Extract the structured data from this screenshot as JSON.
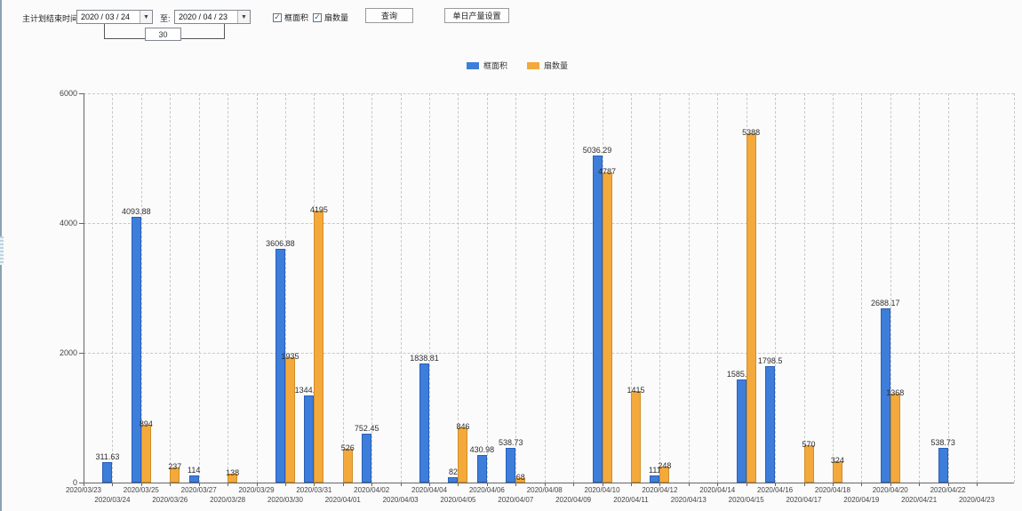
{
  "controls": {
    "plan_end_label": "主计划结束时间:",
    "date_from": "2020 / 03 / 24",
    "to_label": "至:",
    "date_to": "2020 / 04 / 23",
    "days_value": "30",
    "query_button": "查询",
    "daily_output_button": "单日产量设置",
    "dropdown_glyph": "▼"
  },
  "checkboxes": [
    {
      "label": "框面积",
      "checked": true
    },
    {
      "label": "扇数量",
      "checked": true
    }
  ],
  "colors": {
    "frame_area_blue": "#3D7EDB",
    "frame_area_border": "#2A5FB8",
    "fan_count_orange": "#F3A93C",
    "fan_count_border": "#D18F26"
  },
  "legend": [
    {
      "label": "框面积",
      "color": "#3D7EDB"
    },
    {
      "label": "扇数量",
      "color": "#F3A93C"
    }
  ],
  "chart_data": {
    "type": "bar",
    "title": "",
    "xlabel": "",
    "ylabel": "",
    "ylim": [
      0,
      6000
    ],
    "yticks": [
      0,
      2000,
      4000,
      6000
    ],
    "grid": true,
    "legend_position": "top",
    "categories": [
      "2020/03/23",
      "2020/03/24",
      "2020/03/25",
      "2020/03/26",
      "2020/03/27",
      "2020/03/28",
      "2020/03/29",
      "2020/03/30",
      "2020/03/31",
      "2020/04/01",
      "2020/04/02",
      "2020/04/03",
      "2020/04/04",
      "2020/04/05",
      "2020/04/06",
      "2020/04/07",
      "2020/04/08",
      "2020/04/09",
      "2020/04/10",
      "2020/04/11",
      "2020/04/12",
      "2020/04/13",
      "2020/04/14",
      "2020/04/15",
      "2020/04/16",
      "2020/04/17",
      "2020/04/18",
      "2020/04/19",
      "2020/04/20",
      "2020/04/21",
      "2020/04/22",
      "2020/04/23"
    ],
    "series": [
      {
        "name": "框面积",
        "color": "#3D7EDB",
        "border": "#2A5FB8",
        "values": [
          null,
          311.63,
          4093.88,
          null,
          114,
          null,
          null,
          3606.88,
          1344.95,
          null,
          752.45,
          null,
          1838.81,
          82,
          430.98,
          538.73,
          null,
          null,
          5036.29,
          null,
          111,
          null,
          null,
          1585.96,
          1798.5,
          null,
          null,
          null,
          2688.17,
          null,
          538.73,
          null
        ]
      },
      {
        "name": "扇数量",
        "color": "#F3A93C",
        "border": "#D18F26",
        "values": [
          null,
          null,
          894,
          237,
          null,
          138,
          null,
          1935,
          4195,
          526,
          null,
          null,
          null,
          846,
          null,
          68,
          null,
          null,
          4787,
          1415,
          248,
          null,
          null,
          5388,
          null,
          570,
          324,
          null,
          1368,
          null,
          null,
          null
        ]
      }
    ]
  }
}
